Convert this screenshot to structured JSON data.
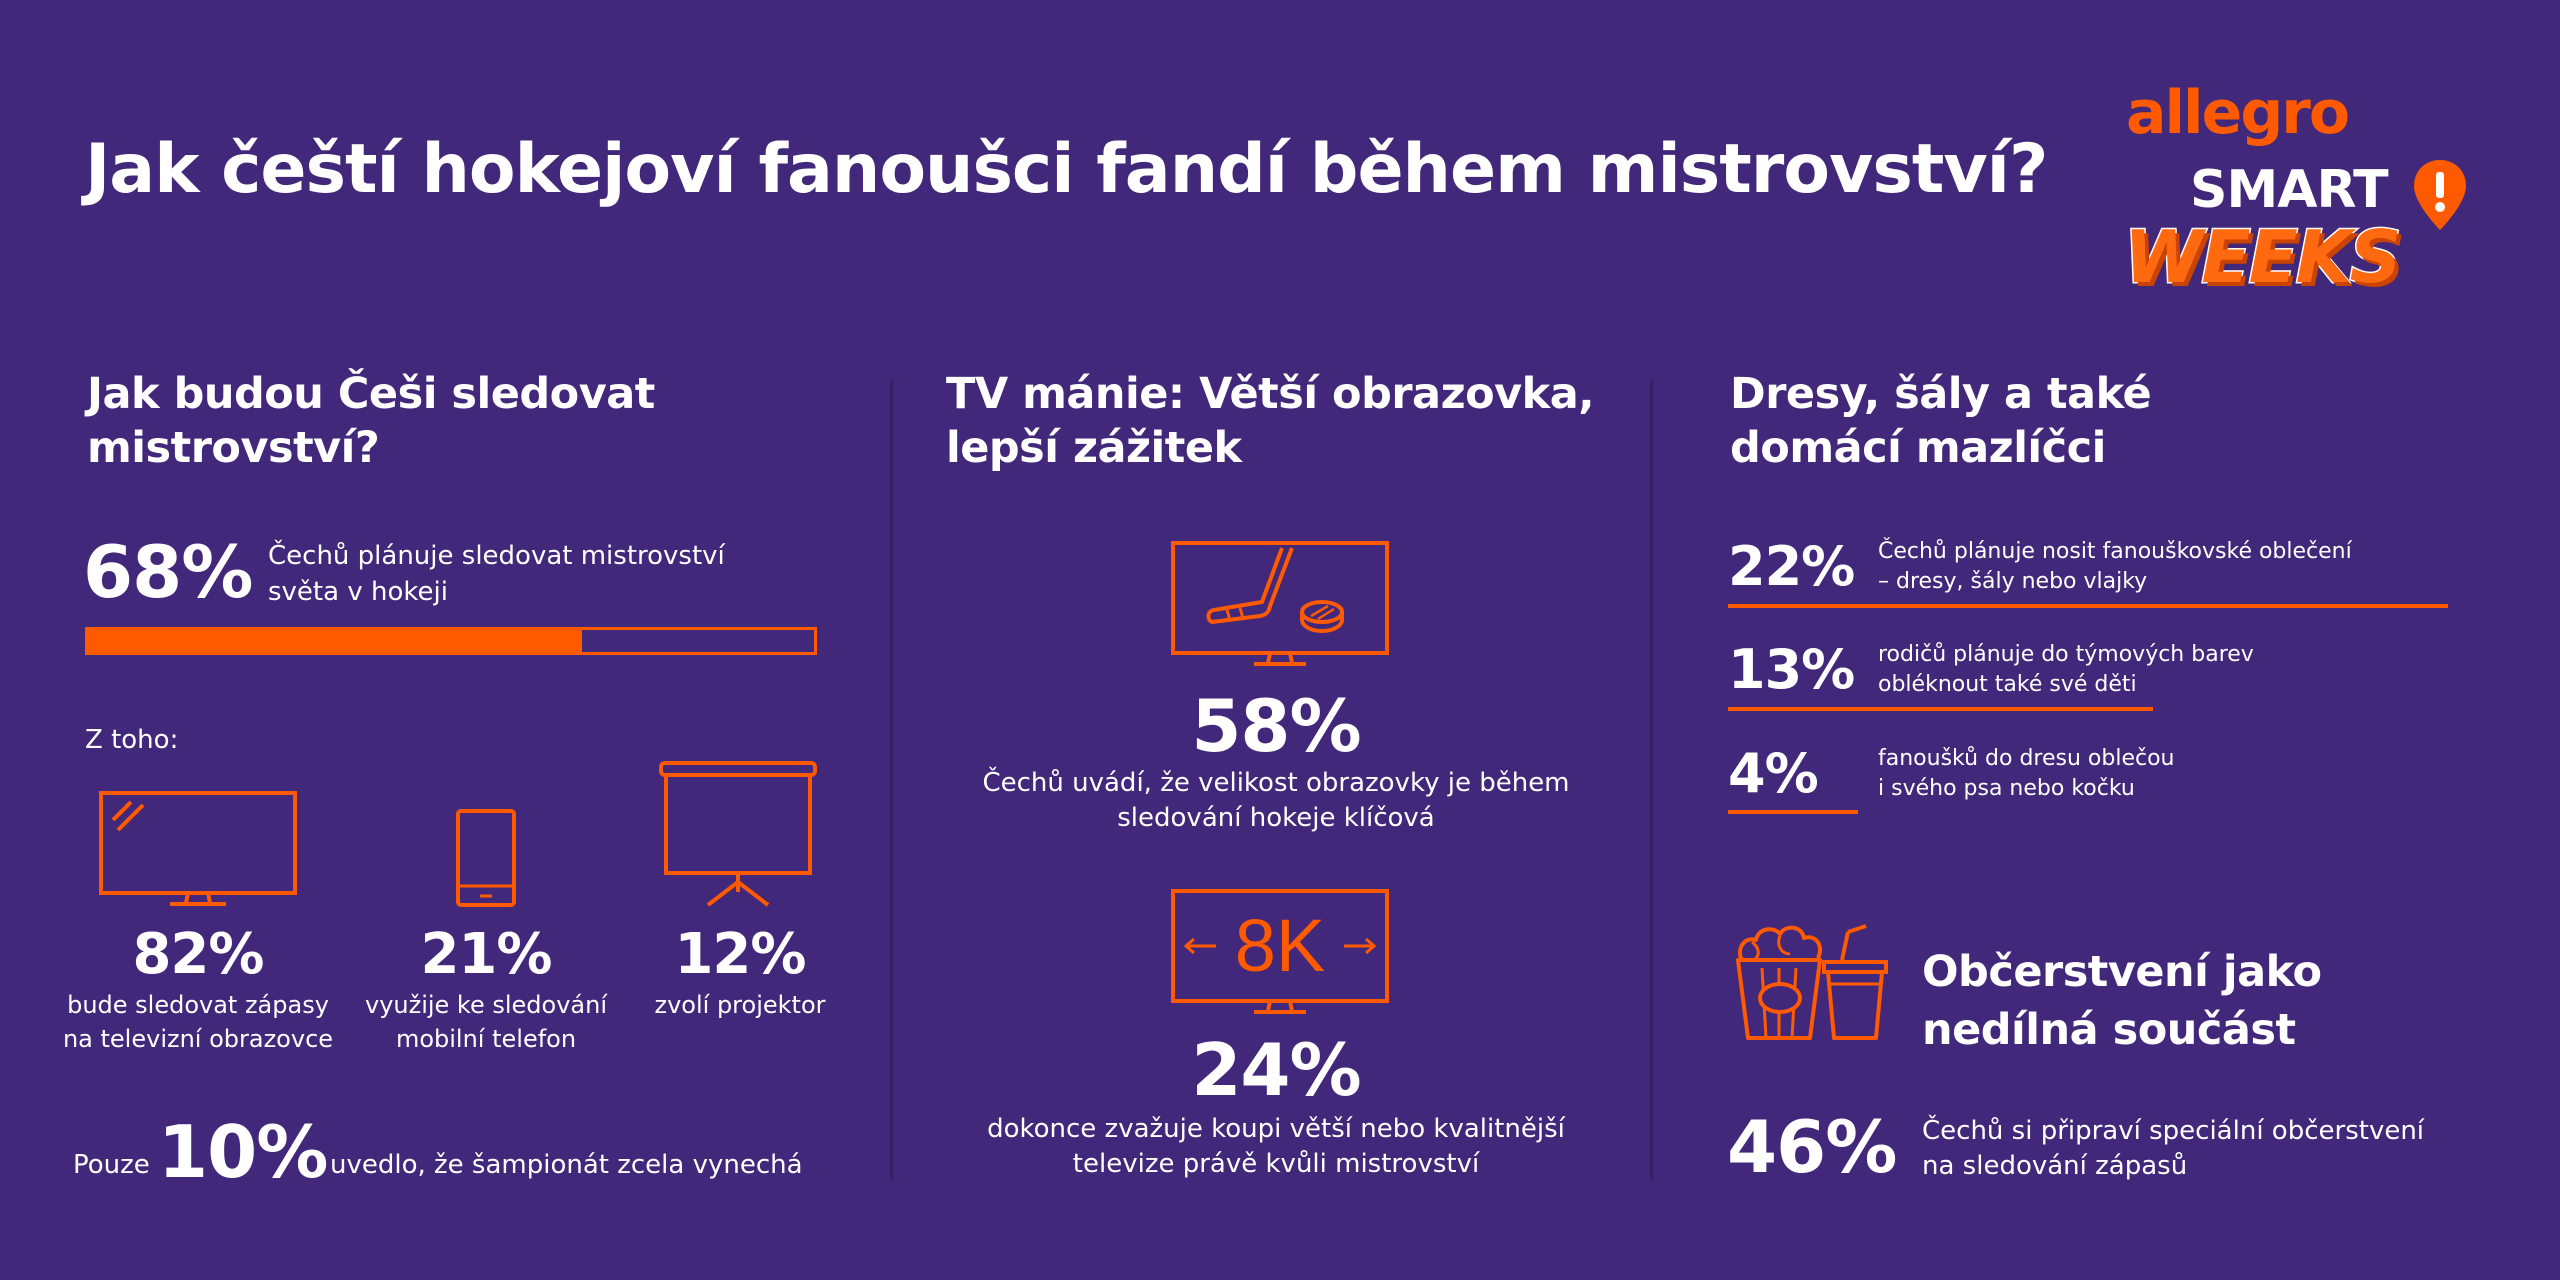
{
  "title": "Jak čeští hokejoví fanoušci fandí během mistrovství?",
  "brand": {
    "allegro": "allegro",
    "smart": "SMART",
    "weeks": "WEEKS"
  },
  "colors": {
    "background": "#42287a",
    "accent": "#ff5a00",
    "divider": "#362166"
  },
  "col1": {
    "heading_line1": "Jak budou Češi sledovat",
    "heading_line2": "mistrovství?",
    "stat_value": "68%",
    "stat_text_line1": "Čechů plánuje sledovat mistrovství",
    "stat_text_line2": "světa v hokeji",
    "progress_fraction": 0.68,
    "subheading": "Z toho:",
    "devices": [
      {
        "icon": "tv-icon",
        "value": "82%",
        "line1": "bude sledovat zápasy",
        "line2": "na televizní obrazovce"
      },
      {
        "icon": "mobile-phone-icon",
        "value": "21%",
        "line1": "využije ke sledování",
        "line2": "mobilní telefon"
      },
      {
        "icon": "projector-screen-icon",
        "value": "12%",
        "line1": "zvolí projektor",
        "line2": ""
      }
    ],
    "footer_prefix": "Pouze",
    "footer_value": "10%",
    "footer_text": "uvedlo, že šampionát zcela vynechá"
  },
  "col2": {
    "heading_line1": "TV mánie: Větší obrazovka,",
    "heading_line2": "lepší zážitek",
    "stat1_value": "58%",
    "stat1_line1": "Čechů uvádí, že velikost obrazovky je během",
    "stat1_line2": "sledování hokeje klíčová",
    "tv8k_label": "8K",
    "stat2_value": "24%",
    "stat2_line1": "dokonce zvažuje koupi větší nebo kvalitnější",
    "stat2_line2": "televize právě kvůli mistrovství"
  },
  "col3": {
    "heading_line1": "Dresy, šály a také",
    "heading_line2": "domácí mazlíčci",
    "stats": [
      {
        "value": "22%",
        "line1": "Čechů plánuje nosit fanouškovské oblečení",
        "line2": "– dresy, šály nebo vlajky",
        "bar_fraction": 1.0
      },
      {
        "value": "13%",
        "line1": "rodičů plánuje do týmových barev",
        "line2": "obléknout také své děti",
        "bar_fraction": 0.59
      },
      {
        "value": "4%",
        "line1": "fanoušků do dresu oblečou",
        "line2": "i svého psa nebo kočku",
        "bar_fraction": 0.18
      }
    ],
    "snack_heading_line1": "Občerstvení jako",
    "snack_heading_line2": "nedílná součást",
    "snack_value": "46%",
    "snack_line1": "Čechů si připraví speciální občerstvení",
    "snack_line2": "na sledování zápasů"
  }
}
